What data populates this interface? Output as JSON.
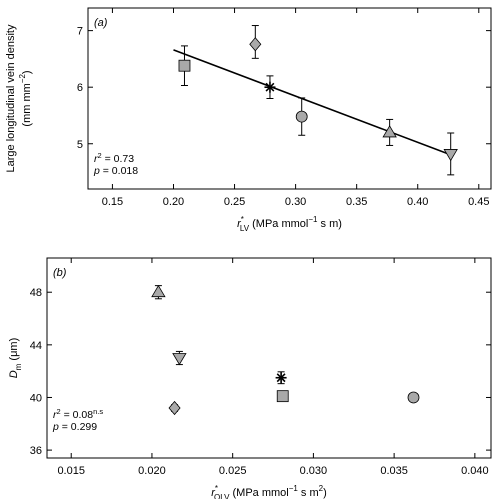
{
  "chart_data": [
    {
      "type": "scatter",
      "panel": "(a)",
      "xlabel": "r*LV (MPa mmol⁻¹ s m)",
      "xlabel_parts": {
        "sym": "r",
        "sup": "*",
        "sub": "LV",
        "units": "(MPa mmol",
        "units_sup": "−1",
        "units_tail": " s m)"
      },
      "ylabel": "Large longitudinal vein density",
      "ylabel2": "(mm mm⁻²)",
      "ylabel2_parts": {
        "base": "(mm mm",
        "sup": "−2",
        "tail": ")"
      },
      "xlim": [
        0.13,
        0.46
      ],
      "ylim": [
        4.2,
        7.4
      ],
      "xticks": [
        0.15,
        0.2,
        0.25,
        0.3,
        0.35,
        0.4,
        0.45
      ],
      "xtick_labels": [
        "0.15",
        "0.20",
        "0.25",
        "0.30",
        "0.35",
        "0.40",
        "0.45"
      ],
      "yticks": [
        5,
        6,
        7
      ],
      "ytick_labels": [
        "5",
        "6",
        "7"
      ],
      "points": [
        {
          "marker": "square",
          "x": 0.209,
          "y": 6.38,
          "err_low": 0.35,
          "err_high": 0.35
        },
        {
          "marker": "diamond",
          "x": 0.267,
          "y": 6.76,
          "err_low": 0.25,
          "err_high": 0.33
        },
        {
          "marker": "asterisk",
          "x": 0.279,
          "y": 6.0,
          "err_low": 0.2,
          "err_high": 0.2
        },
        {
          "marker": "circle",
          "x": 0.305,
          "y": 5.48,
          "err_low": 0.33,
          "err_high": 0.33
        },
        {
          "marker": "triangle-up",
          "x": 0.377,
          "y": 5.2,
          "err_low": 0.23,
          "err_high": 0.23
        },
        {
          "marker": "triangle-down",
          "x": 0.427,
          "y": 4.82,
          "err_low": 0.37,
          "err_high": 0.37
        }
      ],
      "fit_line": {
        "x": [
          0.2,
          0.425
        ],
        "y": [
          6.66,
          4.82
        ]
      },
      "stats": [
        "r² = 0.73",
        "p = 0.018"
      ],
      "stats_parts": [
        {
          "lhs": "r",
          "sup": "2",
          "rhs": " = 0.73"
        },
        {
          "lhs": "p",
          "sup": "",
          "rhs": " = 0.018"
        }
      ]
    },
    {
      "type": "scatter",
      "panel": "(b)",
      "xlabel": "r*OLV (MPa mmol⁻¹ s m2)",
      "xlabel_parts": {
        "sym": "r",
        "sup": "*",
        "sub": "OLV",
        "units": "(MPa mmol",
        "units_sup": "−1",
        "units_tail": " s m",
        "units_sup2": "2",
        "units_end": ")"
      },
      "ylabel": "Dm (μm)",
      "ylabel_parts": {
        "sym": "D",
        "sub": "m",
        "units": " (μm)"
      },
      "xlim": [
        0.0135,
        0.041
      ],
      "ylim": [
        35.4,
        50.6
      ],
      "xticks": [
        0.015,
        0.02,
        0.025,
        0.03,
        0.035,
        0.04
      ],
      "xtick_labels": [
        "0.015",
        "0.020",
        "0.025",
        "0.030",
        "0.035",
        "0.040"
      ],
      "yticks": [
        36,
        40,
        44,
        48
      ],
      "ytick_labels": [
        "36",
        "40",
        "44",
        "48"
      ],
      "points": [
        {
          "marker": "triangle-up",
          "x": 0.0204,
          "y": 48.0,
          "err_low": 0.5,
          "err_high": 0.5
        },
        {
          "marker": "triangle-down",
          "x": 0.0217,
          "y": 43.0,
          "err_low": 0.5,
          "err_high": 0.5
        },
        {
          "marker": "diamond",
          "x": 0.0214,
          "y": 39.2,
          "err_low": 0.25,
          "err_high": 0.25
        },
        {
          "marker": "square",
          "x": 0.0281,
          "y": 40.1,
          "err_low": 0.35,
          "err_high": 0.35
        },
        {
          "marker": "asterisk",
          "x": 0.028,
          "y": 41.5,
          "err_low": 0.45,
          "err_high": 0.45
        },
        {
          "marker": "circle",
          "x": 0.0362,
          "y": 40.0,
          "err_low": 0.3,
          "err_high": 0.3
        }
      ],
      "stats": [
        "r² = 0.08n.s",
        "p = 0.299"
      ],
      "stats_parts": [
        {
          "lhs": "r",
          "sup": "2",
          "rhs": " = 0.08",
          "sup2": "n.s"
        },
        {
          "lhs": "p",
          "sup": "",
          "rhs": " = 0.299"
        }
      ]
    }
  ],
  "colors": {
    "marker_fill": "#a9a9a9",
    "stroke": "#000000"
  }
}
